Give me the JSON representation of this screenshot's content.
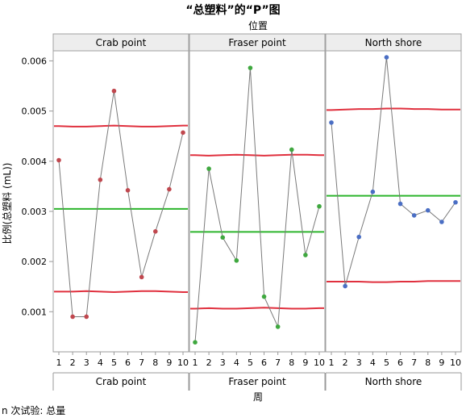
{
  "chart_data": {
    "type": "line",
    "title": "“总塑料”的“P”图",
    "group_title": "位置",
    "xlabel": "周",
    "ylabel": "比例(总塑料 (mL))",
    "footnote": "n 次试验: 总量",
    "ylim": [
      0.0002,
      0.0062
    ],
    "yticks": [
      0.001,
      0.002,
      0.003,
      0.004,
      0.005,
      0.006
    ],
    "ytick_labels": [
      "0.001",
      "0.002",
      "0.003",
      "0.004",
      "0.005",
      "0.006"
    ],
    "x": [
      1,
      2,
      3,
      4,
      5,
      6,
      7,
      8,
      9,
      10
    ],
    "grid": false,
    "colors": {
      "ucl_lcl": "#e0303e",
      "center": "#2db52d",
      "connector": "#7a7a7a"
    },
    "panels": [
      {
        "name": "Crab point",
        "point_color": "#c0474e",
        "values": [
          0.00402,
          0.0009,
          0.0009,
          0.00363,
          0.0054,
          0.00342,
          0.00169,
          0.0026,
          0.00344,
          0.00457
        ],
        "center": 0.00305,
        "ucl": [
          0.0047,
          0.00469,
          0.00469,
          0.0047,
          0.00471,
          0.0047,
          0.00469,
          0.00469,
          0.0047,
          0.00471
        ],
        "lcl": [
          0.0014,
          0.0014,
          0.00141,
          0.0014,
          0.00139,
          0.0014,
          0.00141,
          0.00141,
          0.0014,
          0.00139
        ]
      },
      {
        "name": "Fraser point",
        "point_color": "#3fa83f",
        "values": [
          0.00039,
          0.00385,
          0.00248,
          0.00202,
          0.00586,
          0.0013,
          0.0007,
          0.00423,
          0.00213,
          0.0031
        ],
        "center": 0.00259,
        "ucl": [
          0.00412,
          0.00411,
          0.00412,
          0.00413,
          0.00412,
          0.00411,
          0.00412,
          0.00413,
          0.00413,
          0.00412
        ],
        "lcl": [
          0.00106,
          0.00107,
          0.00106,
          0.00106,
          0.00107,
          0.00108,
          0.00107,
          0.00106,
          0.00106,
          0.00107
        ]
      },
      {
        "name": "North shore",
        "point_color": "#4a6ec4",
        "values": [
          0.00477,
          0.00151,
          0.00249,
          0.00339,
          0.00607,
          0.00315,
          0.00292,
          0.00302,
          0.00279,
          0.00318
        ],
        "center": 0.00331,
        "ucl": [
          0.00502,
          0.00503,
          0.00504,
          0.00504,
          0.00505,
          0.00505,
          0.00504,
          0.00504,
          0.00503,
          0.00503
        ],
        "lcl": [
          0.0016,
          0.0016,
          0.0016,
          0.00159,
          0.00159,
          0.0016,
          0.0016,
          0.00161,
          0.00161,
          0.00161
        ]
      }
    ]
  }
}
